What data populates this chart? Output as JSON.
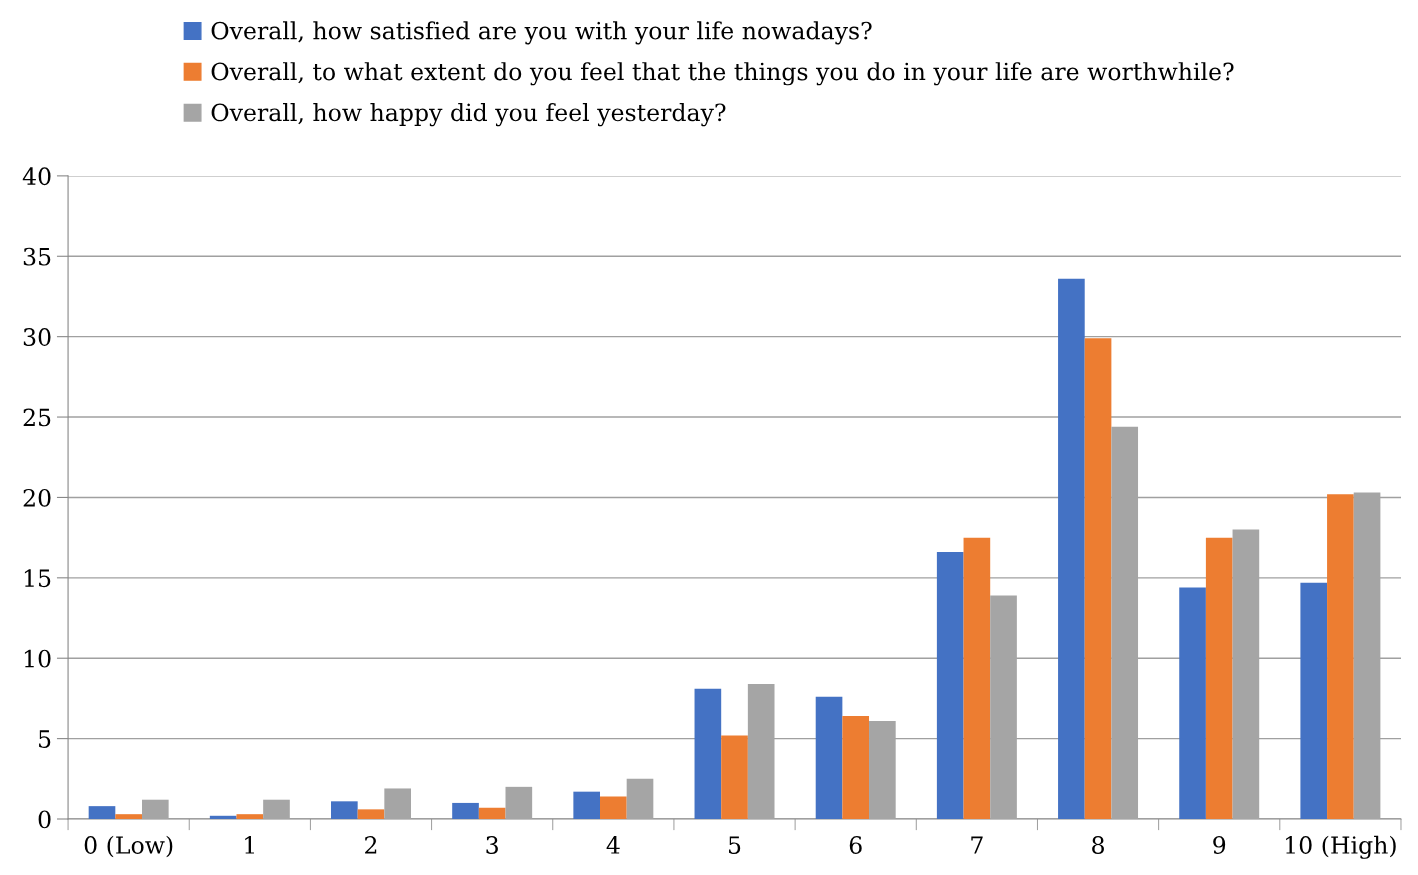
{
  "chart_data": {
    "type": "bar",
    "categories": [
      "0 (Low)",
      "1",
      "2",
      "3",
      "4",
      "5",
      "6",
      "7",
      "8",
      "9",
      "10 (High)"
    ],
    "series": [
      {
        "name": "Overall, how satisfied are you with your life nowadays?",
        "color": "#4472c4",
        "values": [
          0.8,
          0.2,
          1.1,
          1.0,
          1.7,
          8.1,
          7.6,
          16.6,
          33.6,
          14.4,
          14.7
        ]
      },
      {
        "name": "Overall, to what extent do you feel that the things you do in your life are worthwhile?",
        "color": "#ed7d31",
        "values": [
          0.3,
          0.3,
          0.6,
          0.7,
          1.4,
          5.2,
          6.4,
          17.5,
          29.9,
          17.5,
          20.2
        ]
      },
      {
        "name": "Overall, how happy did you feel yesterday?",
        "color": "#a5a5a5",
        "values": [
          1.2,
          1.2,
          1.9,
          2.0,
          2.5,
          8.4,
          6.1,
          13.9,
          24.4,
          18.0,
          20.3
        ]
      }
    ],
    "ylim": [
      0,
      40
    ],
    "yticks": [
      0,
      5,
      10,
      15,
      20,
      25,
      30,
      35,
      40
    ],
    "grid": "y",
    "legend": "top left"
  }
}
